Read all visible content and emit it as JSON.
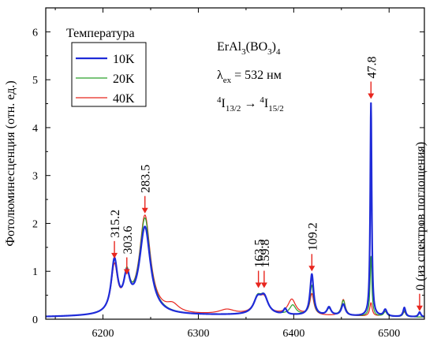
{
  "chart_data": {
    "type": "line",
    "ylabel": "Фотолюминесценция (отн. ед.)",
    "xlim": [
      6140,
      6537
    ],
    "ylim": [
      0,
      6.5
    ],
    "x_ticks": [
      6200,
      6300,
      6400,
      6500
    ],
    "y_ticks": [
      0,
      1,
      2,
      3,
      4,
      5,
      6
    ],
    "legend": {
      "title": "Температура",
      "placement": "top-left"
    },
    "annotation": {
      "compound_main": "ErAl",
      "compound_sub1": "3",
      "compound_mid": "(BO",
      "compound_sub2": "3",
      "compound_close": ")",
      "compound_sub3": "4",
      "lambda_symbol": "λ",
      "lambda_sub": "ex",
      "lambda_value": " = 532 нм",
      "trans_sup1": "4",
      "trans_I1": "I",
      "trans_sub1": "13/2",
      "trans_arrow": " → ",
      "trans_sup2": "4",
      "trans_I2": "I",
      "trans_sub2": "15/2"
    },
    "peak_labels": [
      {
        "x": 6212,
        "y": 1.22,
        "label": "315.2"
      },
      {
        "x": 6225,
        "y": 0.88,
        "label": "303.6"
      },
      {
        "x": 6244,
        "y": 2.16,
        "label": "283.5"
      },
      {
        "x": 6363,
        "y": 0.6,
        "label": "163.5"
      },
      {
        "x": 6369,
        "y": 0.6,
        "label": "159.8"
      },
      {
        "x": 6419,
        "y": 0.95,
        "label": "109.2"
      },
      {
        "x": 6481,
        "y": 4.55,
        "label": "47.8"
      },
      {
        "x": 6532,
        "y": 0.12,
        "label": "0 (из спектров поглощения)"
      }
    ],
    "series": [
      {
        "name": "10K",
        "color": "#1f2bd8",
        "stroke_width": 2.2,
        "peaks": [
          {
            "c": 6212,
            "a": 1.08,
            "w": 4
          },
          {
            "c": 6225,
            "a": 0.68,
            "w": 4
          },
          {
            "c": 6244,
            "a": 1.82,
            "w": 7
          },
          {
            "c": 6362,
            "a": 0.3,
            "w": 5
          },
          {
            "c": 6369,
            "a": 0.34,
            "w": 5
          },
          {
            "c": 6391,
            "a": 0.12,
            "w": 2
          },
          {
            "c": 6419,
            "a": 0.86,
            "w": 2.2
          },
          {
            "c": 6437,
            "a": 0.17,
            "w": 2.5
          },
          {
            "c": 6452,
            "a": 0.24,
            "w": 2.5
          },
          {
            "c": 6481,
            "a": 4.45,
            "w": 0.9
          },
          {
            "c": 6496,
            "a": 0.14,
            "w": 2
          },
          {
            "c": 6516,
            "a": 0.19,
            "w": 1.5
          },
          {
            "c": 6532,
            "a": 0.1,
            "w": 1.5
          }
        ]
      },
      {
        "name": "20K",
        "color": "#2ca02c",
        "stroke_width": 1.2,
        "peaks": [
          {
            "c": 6212,
            "a": 1.04,
            "w": 4
          },
          {
            "c": 6225,
            "a": 0.7,
            "w": 4
          },
          {
            "c": 6244,
            "a": 2.0,
            "w": 7
          },
          {
            "c": 6362,
            "a": 0.32,
            "w": 5
          },
          {
            "c": 6369,
            "a": 0.34,
            "w": 5
          },
          {
            "c": 6399,
            "a": 0.2,
            "w": 4
          },
          {
            "c": 6419,
            "a": 0.62,
            "w": 2.2
          },
          {
            "c": 6437,
            "a": 0.14,
            "w": 3
          },
          {
            "c": 6452,
            "a": 0.32,
            "w": 2.5
          },
          {
            "c": 6481,
            "a": 1.25,
            "w": 1.1
          },
          {
            "c": 6496,
            "a": 0.1,
            "w": 2
          },
          {
            "c": 6516,
            "a": 0.12,
            "w": 1.5
          }
        ]
      },
      {
        "name": "40K",
        "color": "#e8261e",
        "stroke_width": 1.2,
        "peaks": [
          {
            "c": 6212,
            "a": 0.96,
            "w": 4
          },
          {
            "c": 6225,
            "a": 0.66,
            "w": 4
          },
          {
            "c": 6244,
            "a": 2.05,
            "w": 7
          },
          {
            "c": 6273,
            "a": 0.16,
            "w": 8
          },
          {
            "c": 6330,
            "a": 0.1,
            "w": 10
          },
          {
            "c": 6362,
            "a": 0.3,
            "w": 5
          },
          {
            "c": 6369,
            "a": 0.3,
            "w": 5
          },
          {
            "c": 6398,
            "a": 0.32,
            "w": 5
          },
          {
            "c": 6419,
            "a": 0.44,
            "w": 2.5
          },
          {
            "c": 6452,
            "a": 0.34,
            "w": 2.5
          },
          {
            "c": 6481,
            "a": 0.28,
            "w": 1.5
          },
          {
            "c": 6496,
            "a": 0.1,
            "w": 3
          },
          {
            "c": 6516,
            "a": 0.1,
            "w": 2
          }
        ]
      }
    ]
  }
}
